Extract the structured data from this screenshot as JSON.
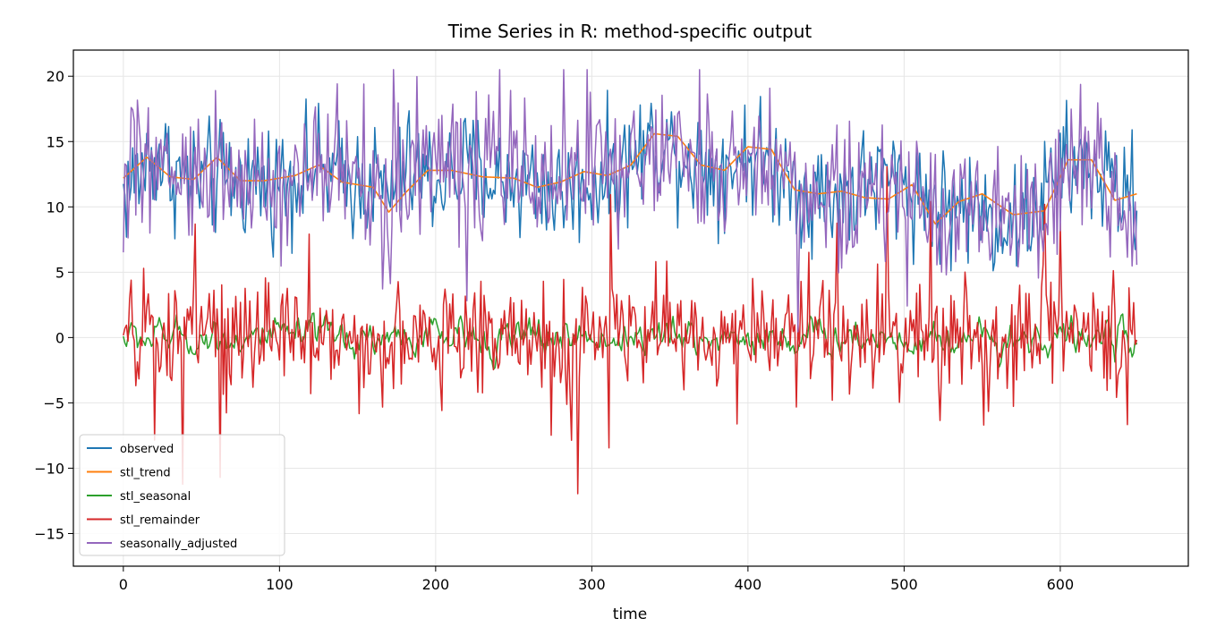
{
  "chart_data": {
    "type": "line",
    "title": "Time Series in R: method-specific output",
    "xlabel": "time",
    "ylabel": "",
    "xlim": [
      -32,
      682
    ],
    "ylim": [
      -17.5,
      22
    ],
    "xticks": [
      0,
      100,
      200,
      300,
      400,
      500,
      600
    ],
    "yticks": [
      -15,
      -10,
      -5,
      0,
      5,
      10,
      15,
      20
    ],
    "grid": true,
    "legend_position": "bottom-left",
    "n_points": 650,
    "series": [
      {
        "name": "observed",
        "color": "#1f77b4",
        "anchors_x": [
          0,
          20,
          40,
          60,
          80,
          100,
          120,
          140,
          160,
          170,
          180,
          200,
          220,
          240,
          260,
          280,
          300,
          320,
          340,
          360,
          380,
          400,
          420,
          440,
          460,
          480,
          500,
          520,
          540,
          560,
          580,
          600,
          620,
          640,
          649
        ],
        "anchors_y": [
          11,
          14,
          12,
          12,
          12,
          12,
          13,
          12,
          12,
          11,
          13,
          12,
          13,
          12,
          12,
          11,
          12,
          13,
          15,
          14,
          13,
          14,
          13,
          11,
          11,
          12,
          12,
          10,
          10,
          9,
          9,
          13,
          13,
          11,
          11
        ],
        "noise": 2.2
      },
      {
        "name": "stl_trend",
        "color": "#ff7f0e",
        "anchors_x": [
          0,
          15,
          30,
          45,
          60,
          75,
          90,
          110,
          125,
          140,
          160,
          170,
          180,
          195,
          210,
          230,
          250,
          265,
          280,
          295,
          310,
          325,
          340,
          355,
          370,
          385,
          400,
          415,
          430,
          445,
          460,
          475,
          490,
          505,
          520,
          535,
          550,
          570,
          590,
          605,
          620,
          635,
          649
        ],
        "anchors_y": [
          12.2,
          13.8,
          12.3,
          12.1,
          13.8,
          12.0,
          12.0,
          12.4,
          13.2,
          11.9,
          11.5,
          9.6,
          11.0,
          12.8,
          12.8,
          12.3,
          12.2,
          11.5,
          11.9,
          12.7,
          12.4,
          13.2,
          15.6,
          15.4,
          13.2,
          12.8,
          14.6,
          14.4,
          11.3,
          11.0,
          11.2,
          10.7,
          10.6,
          11.7,
          8.7,
          10.4,
          11.0,
          9.4,
          9.7,
          13.6,
          13.6,
          10.5,
          11.0
        ],
        "noise": 0.0
      },
      {
        "name": "stl_seasonal",
        "color": "#2ca02c",
        "anchors_x": [
          0,
          649
        ],
        "anchors_y": [
          0,
          0
        ],
        "noise": 1.4
      },
      {
        "name": "stl_remainder",
        "color": "#d62728",
        "anchors_x": [
          0,
          649
        ],
        "anchors_y": [
          0,
          0
        ],
        "noise": 2.1
      },
      {
        "name": "seasonally_adjusted",
        "color": "#9467bd",
        "anchors_x": [
          0,
          20,
          40,
          60,
          80,
          100,
          120,
          140,
          160,
          170,
          180,
          200,
          220,
          240,
          260,
          280,
          300,
          320,
          340,
          360,
          380,
          400,
          420,
          440,
          460,
          480,
          500,
          520,
          540,
          560,
          580,
          600,
          620,
          640,
          649
        ],
        "anchors_y": [
          13,
          13,
          12,
          13,
          12,
          12,
          12,
          12,
          11,
          9,
          13,
          13,
          13,
          13,
          13,
          12,
          13,
          13,
          14,
          14,
          12,
          14,
          13,
          11,
          11,
          11,
          11,
          9,
          10,
          10,
          9,
          13,
          13,
          10,
          11
        ],
        "noise": 2.6
      }
    ]
  }
}
